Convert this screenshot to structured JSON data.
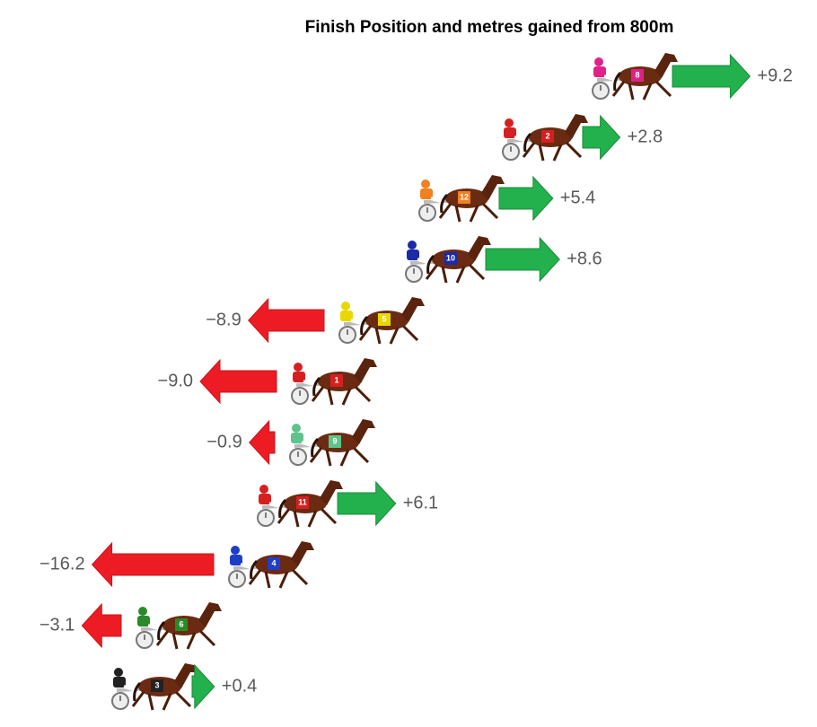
{
  "chart_data": {
    "type": "arrow",
    "title": "Finish Position and metres gained from 800m",
    "categories": [
      "8",
      "2",
      "12",
      "10",
      "5",
      "1",
      "9",
      "11",
      "4",
      "6",
      "3"
    ],
    "values": [
      9.2,
      2.8,
      5.4,
      8.6,
      -8.9,
      -9.0,
      -0.9,
      6.1,
      -16.2,
      -3.1,
      0.4
    ],
    "value_labels": [
      "+9.2",
      "+2.8",
      "+5.4",
      "+8.6",
      "−8.9",
      "−9.0",
      "−0.9",
      "+6.1",
      "−16.2",
      "−3.1",
      "+0.4"
    ],
    "cloth_colors": [
      "#e0218a",
      "#d62020",
      "#f08020",
      "#1b2aa8",
      "#e8d800",
      "#d62020",
      "#5ec48a",
      "#d62020",
      "#1e3ec8",
      "#2a8a2a",
      "#222222"
    ],
    "positive_color": "#22b14c",
    "negative_color": "#ed1c24"
  }
}
